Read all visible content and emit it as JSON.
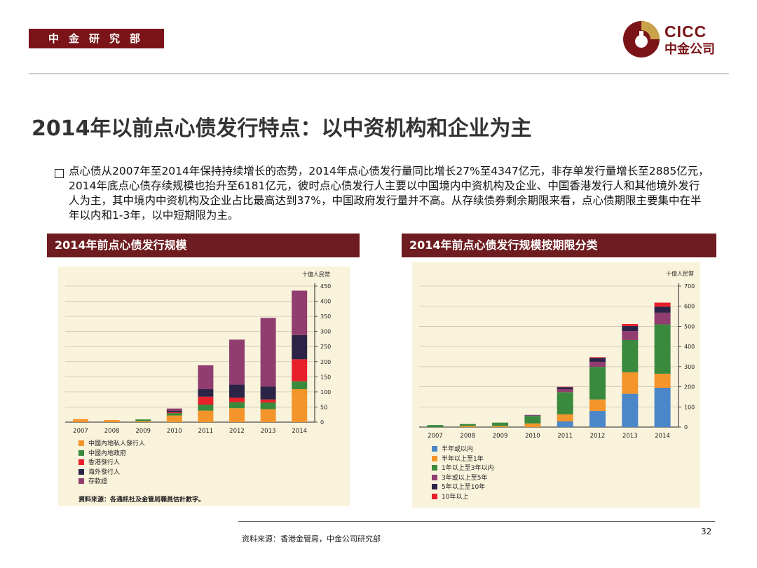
{
  "header": {
    "department": "中金研究部",
    "logo_en": "CICC",
    "logo_cn": "中金公司"
  },
  "title": "2014年以前点心债发行特点：以中资机构和企业为主",
  "paragraph": "点心债从2007年至2014年保持持续增长的态势，2014年点心债发行量同比增长27%至4347亿元，非存单发行量增长至2885亿元，2014年底点心债存续规模也抬升至6181亿元，彼时点心债发行人主要以中国境内中资机构及企业、中国香港发行人和其他境外发行人为主，其中境内中资机构及企业占比最高达到37%，中国政府发行量并不高。从存续债券剩余期限来看，点心债期限主要集中在半年以内和1-3年，以中短期限为主。",
  "panels": {
    "left_title": "2014年前点心债发行规模",
    "right_title": "2014年前点心债发行规模按期限分类"
  },
  "left_source": "資料來源：各通訊社及金管局職員估計數字。",
  "footer": {
    "source": "资料来源：香港金管局，中金公司研究部",
    "page": "32"
  },
  "chart_data": [
    {
      "type": "bar",
      "stacked": true,
      "title": "2014年前点心债发行规模",
      "ylabel": "十億人民幣",
      "ylim": [
        0,
        450
      ],
      "yticks": [
        0,
        50,
        100,
        150,
        200,
        250,
        300,
        350,
        400,
        450
      ],
      "categories": [
        "2007",
        "2008",
        "2009",
        "2010",
        "2011",
        "2012",
        "2013",
        "2014"
      ],
      "grid": true,
      "legend_position": "bottom-left",
      "series": [
        {
          "name": "中國內地私人發行人",
          "color": "#f4952b",
          "values": [
            10,
            7,
            3,
            22,
            38,
            46,
            43,
            109
          ]
        },
        {
          "name": "中國內地政府",
          "color": "#3a8a3e",
          "values": [
            0,
            0,
            6,
            8,
            20,
            20,
            22,
            26
          ]
        },
        {
          "name": "香港發行人",
          "color": "#e8202a",
          "values": [
            0,
            0,
            0,
            3,
            26,
            15,
            10,
            73
          ]
        },
        {
          "name": "海外發行人",
          "color": "#2c2447",
          "values": [
            0,
            0,
            0,
            5,
            25,
            43,
            43,
            80
          ]
        },
        {
          "name": "存款證",
          "color": "#913d6f",
          "values": [
            0,
            0,
            0,
            7,
            79,
            149,
            227,
            147
          ]
        }
      ]
    },
    {
      "type": "bar",
      "stacked": true,
      "title": "2014年前点心债发行规模按期限分类",
      "ylabel": "十億人民幣",
      "ylim": [
        0,
        700
      ],
      "yticks": [
        0,
        100,
        200,
        300,
        400,
        500,
        600,
        700
      ],
      "categories": [
        "2007",
        "2008",
        "2009",
        "2010",
        "2011",
        "2012",
        "2013",
        "2014"
      ],
      "grid": true,
      "legend_position": "bottom-left",
      "series": [
        {
          "name": "半年或以内",
          "color": "#4a86c8",
          "values": [
            0,
            0,
            0,
            0,
            28,
            80,
            165,
            195
          ]
        },
        {
          "name": "半年以上至1年",
          "color": "#f4952b",
          "values": [
            0,
            5,
            5,
            18,
            35,
            57,
            107,
            70
          ]
        },
        {
          "name": "1年以上至3年以内",
          "color": "#3a8a3e",
          "values": [
            10,
            10,
            17,
            37,
            110,
            162,
            160,
            245
          ]
        },
        {
          "name": "3年或以上至5年",
          "color": "#913d6f",
          "values": [
            0,
            0,
            0,
            3,
            15,
            25,
            45,
            58
          ]
        },
        {
          "name": "5年以上至10年",
          "color": "#2c2447",
          "values": [
            0,
            0,
            0,
            2,
            10,
            20,
            25,
            30
          ]
        },
        {
          "name": "10年以上",
          "color": "#e8202a",
          "values": [
            0,
            0,
            0,
            0,
            2,
            3,
            10,
            20
          ]
        }
      ]
    }
  ]
}
